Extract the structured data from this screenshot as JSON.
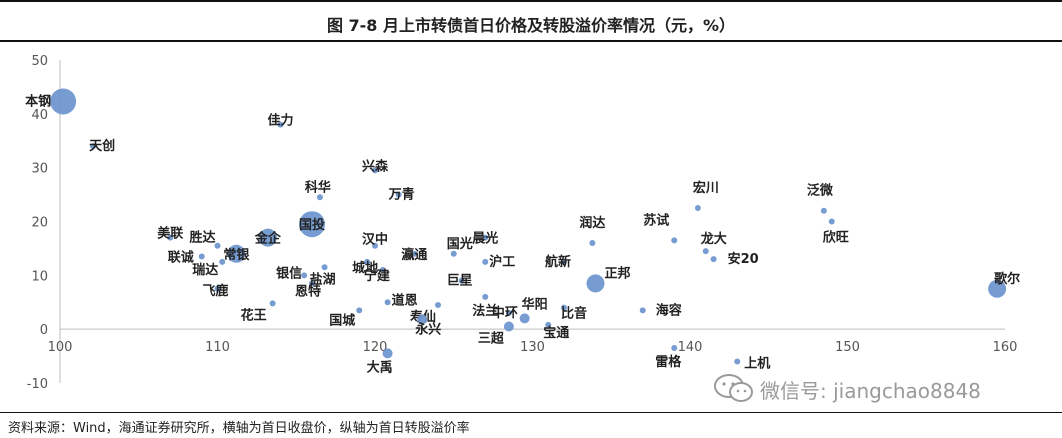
{
  "header": {
    "title": "图    7-8 月上市转债首日价格及转股溢价率情况（元，%）"
  },
  "footer": {
    "source": "资料来源：Wind，海通证券研究所，横轴为首日收盘价，纵轴为首日转股溢价率"
  },
  "watermark": {
    "text": "微信号: jiangchao8848",
    "icon": "wechat-icon"
  },
  "chart_data": {
    "type": "scatter",
    "title": "7-8 月上市转债首日价格及转股溢价率情况（元，%）",
    "xlabel": "",
    "ylabel": "",
    "xlim": [
      100,
      160
    ],
    "ylim": [
      -10,
      50
    ],
    "xticks": [
      100,
      110,
      120,
      130,
      140,
      150,
      160
    ],
    "yticks": [
      -10,
      0,
      10,
      20,
      30,
      40,
      50
    ],
    "grid": false,
    "color": "#6f97cf",
    "points": [
      {
        "name": "本钢",
        "x": 100.2,
        "y": 42.3,
        "size": "large"
      },
      {
        "name": "天创",
        "x": 102.1,
        "y": 34.0,
        "size": "small"
      },
      {
        "name": "佳力",
        "x": 114.0,
        "y": 38.0,
        "size": "small"
      },
      {
        "name": "兴森",
        "x": 120.0,
        "y": 29.5,
        "size": "small"
      },
      {
        "name": "科华",
        "x": 116.5,
        "y": 24.5,
        "size": "small"
      },
      {
        "name": "万青",
        "x": 121.5,
        "y": 25.0,
        "size": "small"
      },
      {
        "name": "国投",
        "x": 116.0,
        "y": 19.5,
        "size": "large"
      },
      {
        "name": "金企",
        "x": 113.2,
        "y": 17.0,
        "size": "medium"
      },
      {
        "name": "美联",
        "x": 107.0,
        "y": 17.0,
        "size": "small"
      },
      {
        "name": "胜达",
        "x": 110.0,
        "y": 15.5,
        "size": "small"
      },
      {
        "name": "常银",
        "x": 111.2,
        "y": 14.0,
        "size": "medium"
      },
      {
        "name": "联诚",
        "x": 109.0,
        "y": 13.5,
        "size": "small"
      },
      {
        "name": "瑞达",
        "x": 110.3,
        "y": 12.5,
        "size": "small"
      },
      {
        "name": "飞鹿",
        "x": 110.0,
        "y": 7.5,
        "size": "small"
      },
      {
        "name": "银信",
        "x": 115.5,
        "y": 10.0,
        "size": "small"
      },
      {
        "name": "恩特",
        "x": 116.0,
        "y": 8.5,
        "size": "small"
      },
      {
        "name": "盐湖",
        "x": 116.8,
        "y": 11.5,
        "size": "small"
      },
      {
        "name": "花王",
        "x": 113.5,
        "y": 4.8,
        "size": "small"
      },
      {
        "name": "国城",
        "x": 119.0,
        "y": 3.5,
        "size": "small"
      },
      {
        "name": "道恩",
        "x": 120.8,
        "y": 5.0,
        "size": "small"
      },
      {
        "name": "汉中",
        "x": 120.0,
        "y": 15.5,
        "size": "small"
      },
      {
        "name": "城地",
        "x": 119.5,
        "y": 12.5,
        "size": "small"
      },
      {
        "name": "宁建",
        "x": 120.5,
        "y": 11.0,
        "size": "small"
      },
      {
        "name": "瀛通",
        "x": 122.5,
        "y": 14.0,
        "size": "small"
      },
      {
        "name": "寿仙",
        "x": 124.0,
        "y": 4.5,
        "size": "small"
      },
      {
        "name": "永兴",
        "x": 123.0,
        "y": 1.8,
        "size": "medium-small"
      },
      {
        "name": "大禹",
        "x": 120.8,
        "y": -4.5,
        "size": "medium-small"
      },
      {
        "name": "国光",
        "x": 125.0,
        "y": 14.0,
        "size": "small"
      },
      {
        "name": "晨光",
        "x": 127.0,
        "y": 17.0,
        "size": "small"
      },
      {
        "name": "沪工",
        "x": 127.0,
        "y": 12.5,
        "size": "small"
      },
      {
        "name": "巨星",
        "x": 125.5,
        "y": 9.0,
        "size": "small"
      },
      {
        "name": "法兰",
        "x": 127.0,
        "y": 6.0,
        "size": "small"
      },
      {
        "name": "中环",
        "x": 128.5,
        "y": 3.0,
        "size": "small"
      },
      {
        "name": "华阳",
        "x": 129.5,
        "y": 2.0,
        "size": "medium-small"
      },
      {
        "name": "三超",
        "x": 128.5,
        "y": 0.5,
        "size": "medium-small"
      },
      {
        "name": "宝通",
        "x": 131.0,
        "y": 0.8,
        "size": "small"
      },
      {
        "name": "比音",
        "x": 132.0,
        "y": 4.0,
        "size": "small"
      },
      {
        "name": "航新",
        "x": 132.0,
        "y": 12.5,
        "size": "small"
      },
      {
        "name": "润达",
        "x": 133.8,
        "y": 16.0,
        "size": "small"
      },
      {
        "name": "正邦",
        "x": 134.0,
        "y": 8.5,
        "size": "medium"
      },
      {
        "name": "苏试",
        "x": 139.0,
        "y": 16.5,
        "size": "small"
      },
      {
        "name": "海容",
        "x": 137.0,
        "y": 3.5,
        "size": "small"
      },
      {
        "name": "雷格",
        "x": 139.0,
        "y": -3.5,
        "size": "small"
      },
      {
        "name": "宏川",
        "x": 140.5,
        "y": 22.5,
        "size": "small"
      },
      {
        "name": "龙大",
        "x": 141.0,
        "y": 14.5,
        "size": "small"
      },
      {
        "name": "安20",
        "x": 141.5,
        "y": 13.0,
        "size": "small"
      },
      {
        "name": "上机",
        "x": 143.0,
        "y": -6.0,
        "size": "small"
      },
      {
        "name": "泛微",
        "x": 148.5,
        "y": 22.0,
        "size": "small"
      },
      {
        "name": "欣旺",
        "x": 149.0,
        "y": 20.0,
        "size": "small"
      },
      {
        "name": "歌尔",
        "x": 159.5,
        "y": 7.5,
        "size": "medium"
      }
    ]
  }
}
